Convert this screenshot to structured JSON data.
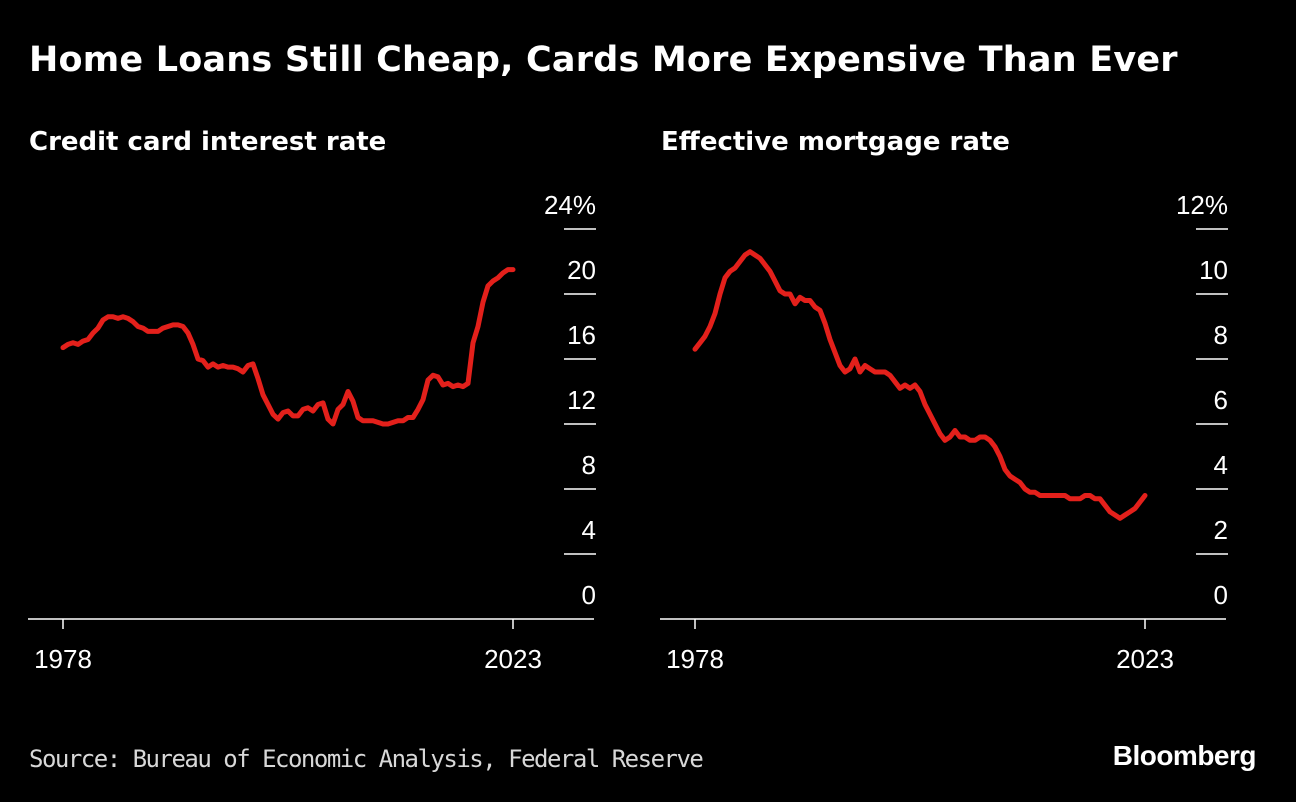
{
  "headline": "Home Loans Still Cheap, Cards More Expensive Than Ever",
  "source": "Source: Bureau of Economic Analysis, Federal Reserve",
  "brand": "Bloomberg",
  "colors": {
    "background": "#000000",
    "line": "#e3201b",
    "axis": "#ffffff"
  },
  "chart_data": [
    {
      "type": "line",
      "title": "Credit card interest rate",
      "xlim": [
        1978,
        2023
      ],
      "ylim": [
        0,
        24
      ],
      "x_ticks": [
        "1978",
        "2023"
      ],
      "y_ticks": [
        0,
        4,
        8,
        12,
        16,
        20,
        24
      ],
      "y_tick_labels": [
        "0",
        "4",
        "8",
        "12",
        "16",
        "20",
        "24%"
      ],
      "series": [
        {
          "x": [
            1978,
            1978.5,
            1979,
            1979.5,
            1980,
            1980.5,
            1981,
            1981.5,
            1982,
            1982.5,
            1983,
            1983.5,
            1984,
            1984.5,
            1985,
            1985.5,
            1986,
            1986.5,
            1987,
            1987.5,
            1988,
            1988.5,
            1989,
            1989.5,
            1990,
            1990.5,
            1991,
            1991.5,
            1992,
            1992.5,
            1993,
            1993.5,
            1994,
            1994.5,
            1995,
            1995.5,
            1996,
            1996.5,
            1997,
            1997.5,
            1998,
            1998.5,
            1999,
            1999.5,
            2000,
            2000.5,
            2001,
            2001.5,
            2002,
            2002.5,
            2003,
            2003.5,
            2004,
            2004.5,
            2005,
            2005.5,
            2006,
            2006.5,
            2007,
            2007.5,
            2008,
            2008.5,
            2009,
            2009.5,
            2010,
            2010.5,
            2011,
            2011.5,
            2012,
            2012.5,
            2013,
            2013.5,
            2014,
            2014.5,
            2015,
            2015.5,
            2016,
            2016.5,
            2017,
            2017.5,
            2018,
            2018.5,
            2019,
            2019.5,
            2020,
            2020.5,
            2021,
            2021.5,
            2022,
            2022.5,
            2023
          ],
          "y": [
            16.7,
            16.9,
            17.0,
            16.9,
            17.1,
            17.2,
            17.6,
            17.9,
            18.4,
            18.6,
            18.6,
            18.5,
            18.6,
            18.5,
            18.3,
            18.0,
            17.9,
            17.7,
            17.7,
            17.7,
            17.9,
            18.0,
            18.1,
            18.1,
            18.0,
            17.6,
            16.9,
            16.0,
            15.9,
            15.5,
            15.7,
            15.5,
            15.6,
            15.5,
            15.5,
            15.4,
            15.2,
            15.6,
            15.7,
            14.8,
            13.8,
            13.2,
            12.6,
            12.3,
            12.7,
            12.8,
            12.5,
            12.5,
            12.9,
            13.0,
            12.8,
            13.2,
            13.3,
            12.3,
            12.0,
            12.9,
            13.2,
            14.0,
            13.4,
            12.4,
            12.2,
            12.2,
            12.2,
            12.1,
            12.0,
            12.0,
            12.1,
            12.2,
            12.2,
            12.4,
            12.4,
            12.9,
            13.5,
            14.7,
            15.0,
            14.9,
            14.4,
            14.5,
            14.3,
            14.4,
            14.3,
            14.5,
            17.0,
            18.0,
            19.5,
            20.5,
            20.8,
            21.0,
            21.3,
            21.5,
            21.5
          ]
        }
      ]
    },
    {
      "type": "line",
      "title": "Effective mortgage rate",
      "xlim": [
        1978,
        2023
      ],
      "ylim": [
        0,
        12
      ],
      "x_ticks": [
        "1978",
        "2023"
      ],
      "y_ticks": [
        0,
        2,
        4,
        6,
        8,
        10,
        12
      ],
      "y_tick_labels": [
        "0",
        "2",
        "4",
        "6",
        "8",
        "10",
        "12%"
      ],
      "series": [
        {
          "x": [
            1978,
            1978.5,
            1979,
            1979.5,
            1980,
            1980.5,
            1981,
            1981.5,
            1982,
            1982.5,
            1983,
            1983.5,
            1984,
            1984.5,
            1985,
            1985.5,
            1986,
            1986.5,
            1987,
            1987.5,
            1988,
            1988.5,
            1989,
            1989.5,
            1990,
            1990.5,
            1991,
            1991.5,
            1992,
            1992.5,
            1993,
            1993.5,
            1994,
            1994.5,
            1995,
            1995.5,
            1996,
            1996.5,
            1997,
            1997.5,
            1998,
            1998.5,
            1999,
            1999.5,
            2000,
            2000.5,
            2001,
            2001.5,
            2002,
            2002.5,
            2003,
            2003.5,
            2004,
            2004.5,
            2005,
            2005.5,
            2006,
            2006.5,
            2007,
            2007.5,
            2008,
            2008.5,
            2009,
            2009.5,
            2010,
            2010.5,
            2011,
            2011.5,
            2012,
            2012.5,
            2013,
            2013.5,
            2014,
            2014.5,
            2015,
            2015.5,
            2016,
            2016.5,
            2017,
            2017.5,
            2018,
            2018.5,
            2019,
            2019.5,
            2020,
            2020.5,
            2021,
            2021.5,
            2022,
            2022.5,
            2023
          ],
          "y": [
            8.3,
            8.5,
            8.7,
            9.0,
            9.4,
            10.0,
            10.5,
            10.7,
            10.8,
            11.0,
            11.2,
            11.3,
            11.2,
            11.1,
            10.9,
            10.7,
            10.4,
            10.1,
            10.0,
            10.0,
            9.7,
            9.9,
            9.8,
            9.8,
            9.6,
            9.5,
            9.1,
            8.6,
            8.2,
            7.8,
            7.6,
            7.7,
            8.0,
            7.6,
            7.8,
            7.7,
            7.6,
            7.6,
            7.6,
            7.5,
            7.3,
            7.1,
            7.2,
            7.1,
            7.2,
            7.0,
            6.6,
            6.3,
            6.0,
            5.7,
            5.5,
            5.6,
            5.8,
            5.6,
            5.6,
            5.5,
            5.5,
            5.6,
            5.6,
            5.5,
            5.3,
            5.0,
            4.6,
            4.4,
            4.3,
            4.2,
            4.0,
            3.9,
            3.9,
            3.8,
            3.8,
            3.8,
            3.8,
            3.8,
            3.8,
            3.7,
            3.7,
            3.7,
            3.8,
            3.8,
            3.7,
            3.7,
            3.5,
            3.3,
            3.2,
            3.1,
            3.2,
            3.3,
            3.4,
            3.6,
            3.8
          ]
        }
      ]
    }
  ]
}
